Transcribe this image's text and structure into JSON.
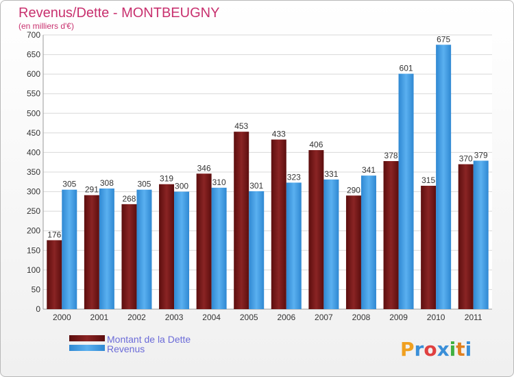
{
  "chart_data": {
    "type": "bar",
    "title": "Revenus/Dette - MONTBEUGNY",
    "subtitle": "(en milliers d'€)",
    "categories": [
      "2000",
      "2001",
      "2002",
      "2003",
      "2004",
      "2005",
      "2006",
      "2007",
      "2008",
      "2009",
      "2010",
      "2011"
    ],
    "series": [
      {
        "name": "Montant de la Dette",
        "color": "#7a1a1a",
        "values": [
          176,
          291,
          268,
          319,
          346,
          453,
          433,
          406,
          290,
          378,
          315,
          370
        ]
      },
      {
        "name": "Revenus",
        "color": "#4aa3e8",
        "values": [
          305,
          308,
          305,
          300,
          310,
          301,
          323,
          331,
          341,
          601,
          675,
          379
        ]
      }
    ],
    "ylim": [
      0,
      700
    ],
    "yticks": [
      0,
      50,
      100,
      150,
      200,
      250,
      300,
      350,
      400,
      450,
      500,
      550,
      600,
      650,
      700
    ],
    "grid": true,
    "legend": "bottom-left"
  },
  "logo": {
    "text": "Proxiti",
    "letters": [
      "P",
      "r",
      "o",
      "x",
      "i",
      "t",
      "i"
    ],
    "colors": [
      "#f0a020",
      "#3a8fd8",
      "#e04040",
      "#3a8fd8",
      "#40b040",
      "#e08020",
      "#3a8fd8"
    ]
  }
}
